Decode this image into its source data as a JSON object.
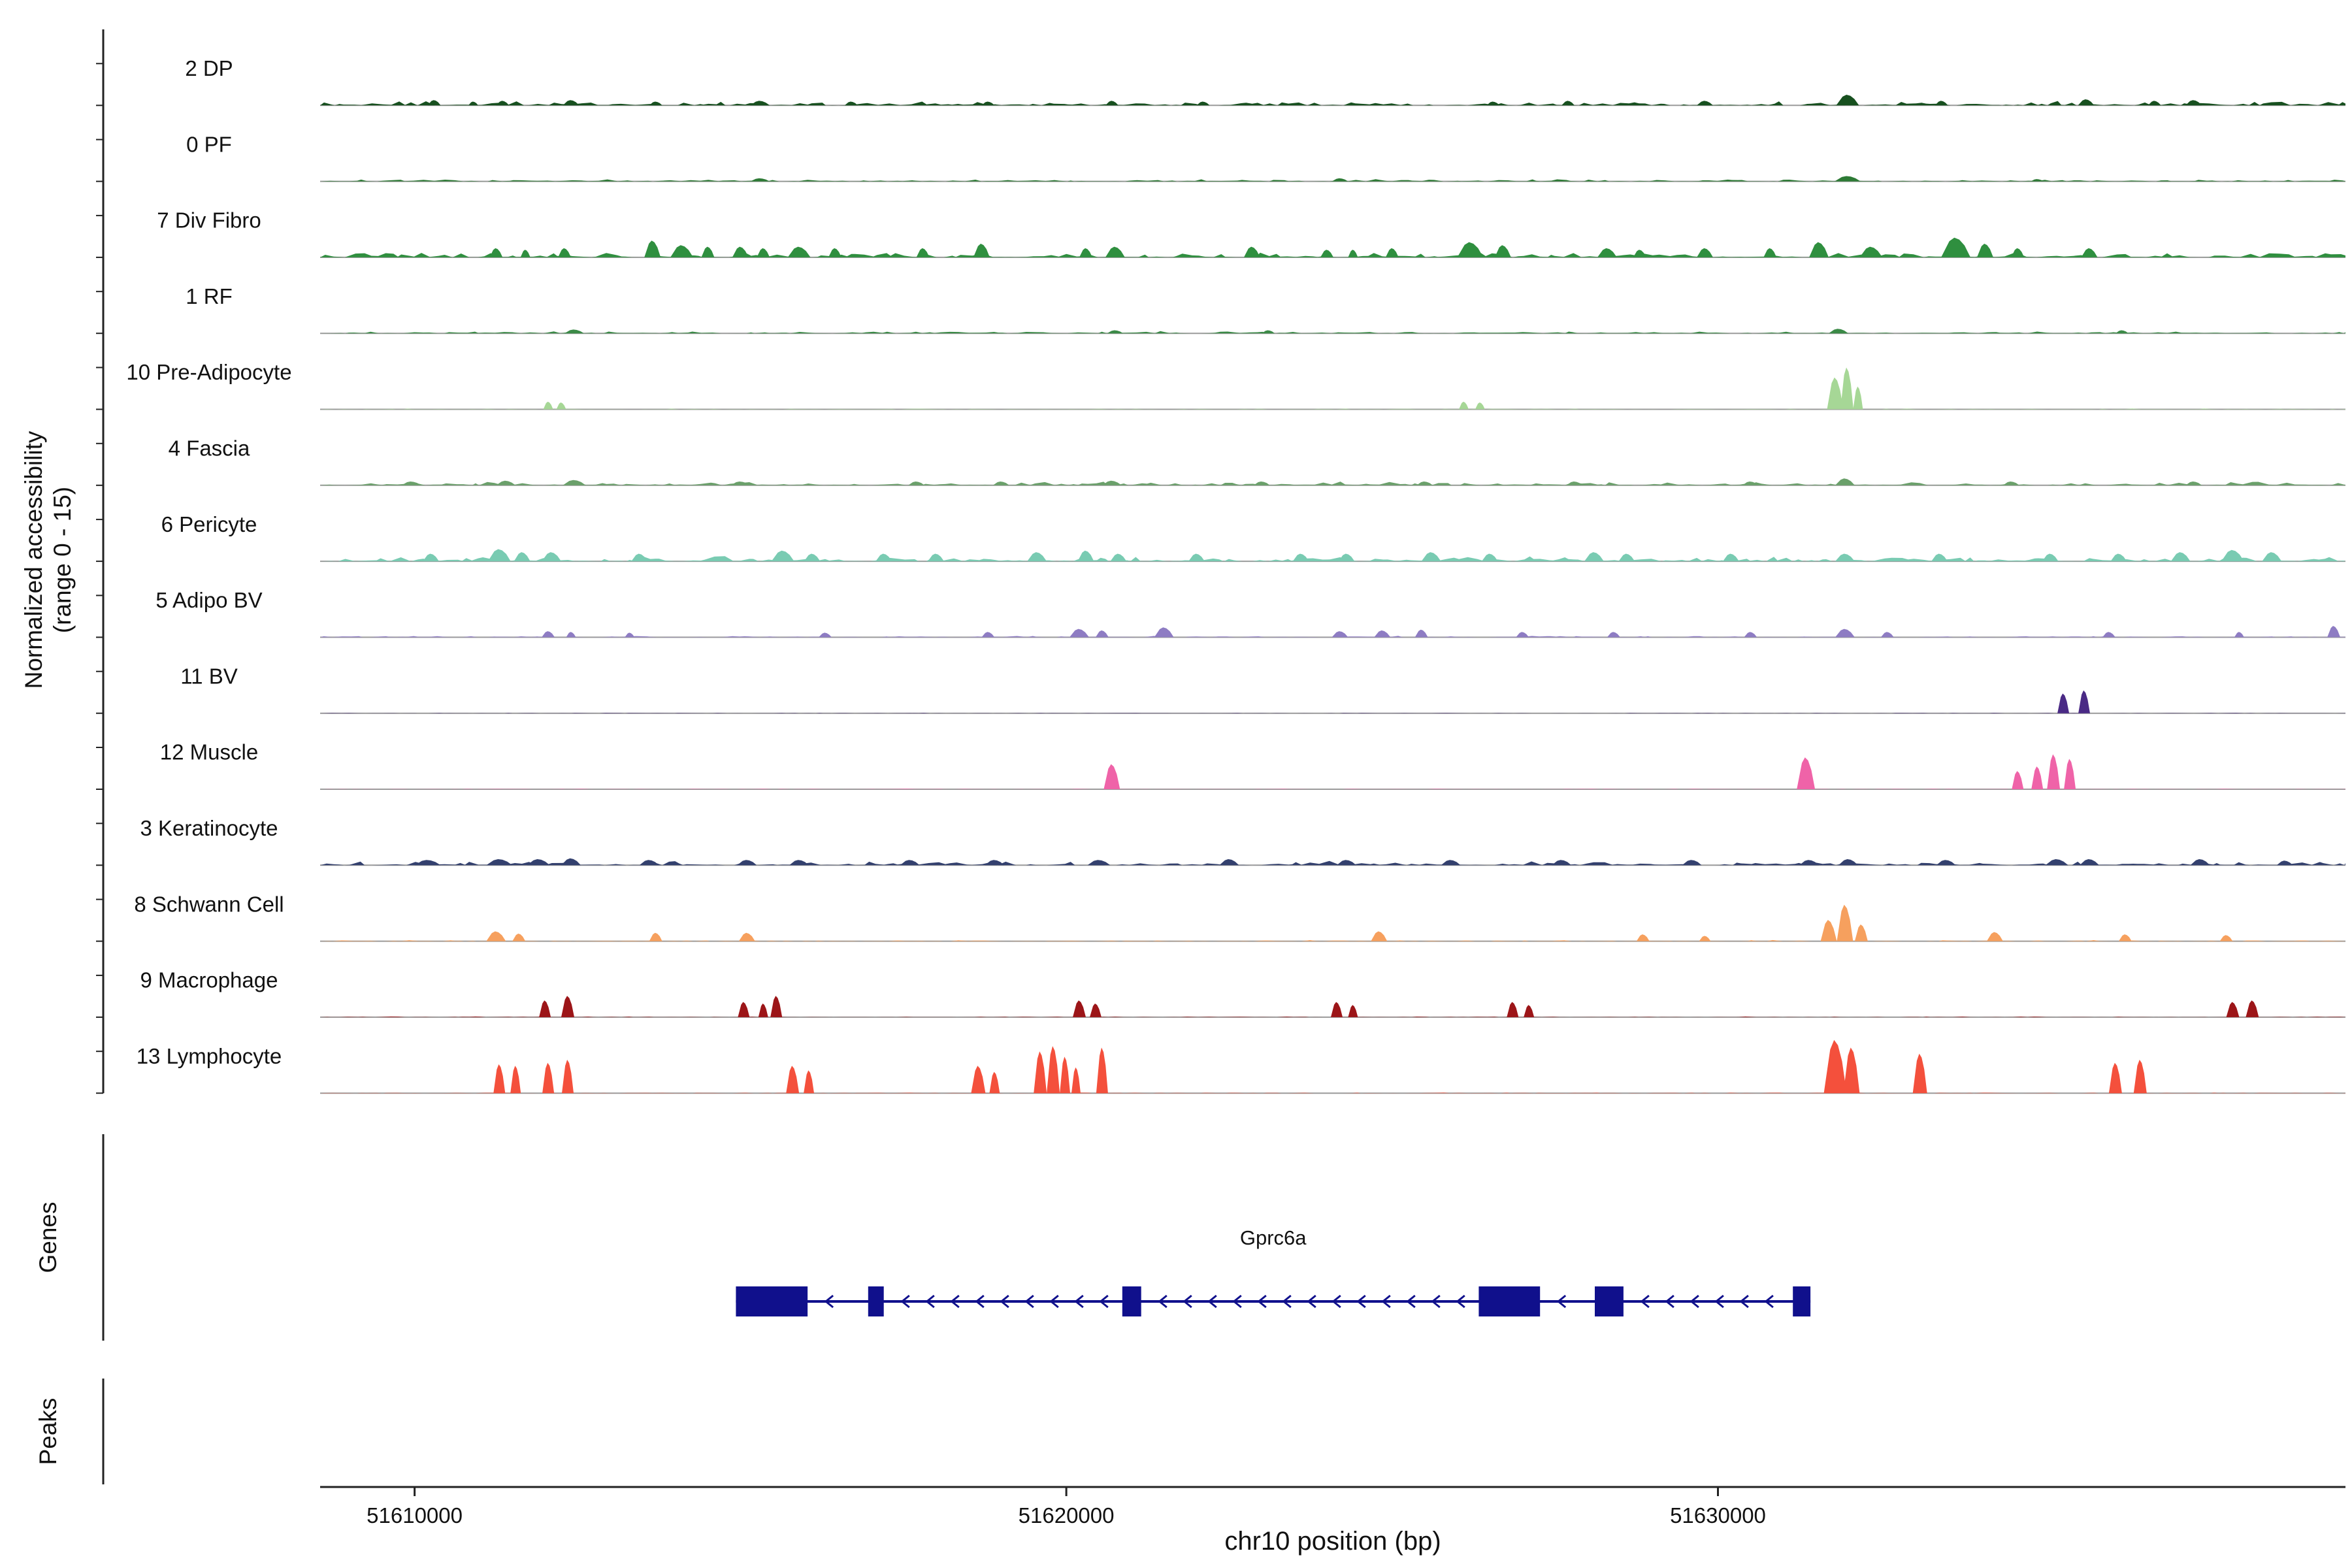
{
  "chart_data": {
    "type": "area",
    "title": "",
    "x_axis": {
      "label": "chr10 position (bp)",
      "domain": [
        51608550,
        51639630
      ],
      "ticks": [
        51610000,
        51620000,
        51630000
      ],
      "tick_labels": [
        "51610000",
        "51620000",
        "51630000"
      ]
    },
    "y_axis": {
      "label_line1": "Normalized accessibility",
      "label_line2": "(range 0 - 15)",
      "per_track_range": [
        0,
        15
      ]
    },
    "tracks": [
      {
        "label": "2 DP",
        "color": "#17501f",
        "noise": 0.06,
        "peaks": [
          [
            51610300,
            200,
            0.07
          ],
          [
            51610900,
            150,
            0.05
          ],
          [
            51611350,
            200,
            0.06
          ],
          [
            51612400,
            250,
            0.07
          ],
          [
            51613700,
            200,
            0.05
          ],
          [
            51615300,
            300,
            0.06
          ],
          [
            51616700,
            200,
            0.05
          ],
          [
            51618800,
            200,
            0.05
          ],
          [
            51620700,
            200,
            0.06
          ],
          [
            51622100,
            200,
            0.05
          ],
          [
            51626550,
            200,
            0.05
          ],
          [
            51627700,
            200,
            0.06
          ],
          [
            51629800,
            250,
            0.06
          ],
          [
            51631990,
            350,
            0.14
          ],
          [
            51633430,
            200,
            0.06
          ],
          [
            51635650,
            250,
            0.08
          ],
          [
            51636700,
            200,
            0.06
          ],
          [
            51637300,
            250,
            0.07
          ]
        ]
      },
      {
        "label": "0 PF",
        "color": "#2d7a35",
        "noise": 0.03,
        "peaks": [
          [
            51615300,
            300,
            0.04
          ],
          [
            51624200,
            250,
            0.04
          ],
          [
            51631990,
            400,
            0.07
          ],
          [
            51634900,
            200,
            0.03
          ]
        ]
      },
      {
        "label": "7 Div Fibro",
        "color": "#2f8f3f",
        "noise": 0.07,
        "peaks": [
          [
            51611250,
            200,
            0.12
          ],
          [
            51611700,
            150,
            0.1
          ],
          [
            51612300,
            200,
            0.12
          ],
          [
            51613650,
            250,
            0.22
          ],
          [
            51614100,
            350,
            0.16
          ],
          [
            51614500,
            200,
            0.14
          ],
          [
            51615000,
            250,
            0.14
          ],
          [
            51615350,
            200,
            0.12
          ],
          [
            51615900,
            350,
            0.14
          ],
          [
            51616450,
            200,
            0.12
          ],
          [
            51617800,
            200,
            0.12
          ],
          [
            51618700,
            250,
            0.18
          ],
          [
            51620300,
            200,
            0.12
          ],
          [
            51620750,
            300,
            0.14
          ],
          [
            51622850,
            250,
            0.14
          ],
          [
            51624000,
            200,
            0.1
          ],
          [
            51624400,
            150,
            0.1
          ],
          [
            51625000,
            200,
            0.12
          ],
          [
            51626200,
            400,
            0.2
          ],
          [
            51626700,
            250,
            0.16
          ],
          [
            51628300,
            300,
            0.12
          ],
          [
            51628800,
            200,
            0.1
          ],
          [
            51629800,
            250,
            0.12
          ],
          [
            51630800,
            200,
            0.12
          ],
          [
            51631550,
            300,
            0.2
          ],
          [
            51632350,
            350,
            0.14
          ],
          [
            51633650,
            450,
            0.26
          ],
          [
            51634100,
            250,
            0.18
          ],
          [
            51634600,
            200,
            0.12
          ],
          [
            51635700,
            250,
            0.12
          ]
        ]
      },
      {
        "label": "1 RF",
        "color": "#3b8a47",
        "noise": 0.03,
        "peaks": [
          [
            51612450,
            300,
            0.05
          ],
          [
            51620750,
            250,
            0.04
          ],
          [
            51623100,
            200,
            0.04
          ],
          [
            51631850,
            300,
            0.06
          ],
          [
            51636200,
            200,
            0.04
          ]
        ]
      },
      {
        "label": "10 Pre-Adipocyte",
        "color": "#a6d796",
        "noise": 0.01,
        "peaks": [
          [
            51612050,
            150,
            0.1
          ],
          [
            51612250,
            150,
            0.09
          ],
          [
            51626100,
            150,
            0.1
          ],
          [
            51626350,
            150,
            0.09
          ],
          [
            51631800,
            250,
            0.42
          ],
          [
            51631980,
            200,
            0.55
          ],
          [
            51632150,
            150,
            0.3
          ]
        ]
      },
      {
        "label": "4 Fascia",
        "color": "#6aa06a",
        "noise": 0.05,
        "peaks": [
          [
            51609950,
            300,
            0.05
          ],
          [
            51611400,
            300,
            0.06
          ],
          [
            51612450,
            350,
            0.07
          ],
          [
            51615000,
            300,
            0.05
          ],
          [
            51617700,
            250,
            0.05
          ],
          [
            51619000,
            250,
            0.05
          ],
          [
            51620700,
            300,
            0.06
          ],
          [
            51623000,
            250,
            0.05
          ],
          [
            51625500,
            250,
            0.05
          ],
          [
            51627800,
            250,
            0.05
          ],
          [
            51630500,
            250,
            0.05
          ],
          [
            51631950,
            300,
            0.09
          ],
          [
            51634500,
            250,
            0.05
          ],
          [
            51637300,
            250,
            0.05
          ]
        ]
      },
      {
        "label": "6 Pericyte",
        "color": "#79cbb2",
        "noise": 0.07,
        "peaks": [
          [
            51610250,
            250,
            0.1
          ],
          [
            51611300,
            350,
            0.16
          ],
          [
            51611650,
            250,
            0.12
          ],
          [
            51612100,
            300,
            0.12
          ],
          [
            51613450,
            250,
            0.1
          ],
          [
            51615650,
            350,
            0.14
          ],
          [
            51616100,
            250,
            0.1
          ],
          [
            51617200,
            250,
            0.1
          ],
          [
            51618000,
            250,
            0.1
          ],
          [
            51619550,
            300,
            0.12
          ],
          [
            51620300,
            250,
            0.14
          ],
          [
            51620800,
            250,
            0.1
          ],
          [
            51622000,
            250,
            0.1
          ],
          [
            51623600,
            250,
            0.1
          ],
          [
            51624300,
            250,
            0.1
          ],
          [
            51625600,
            300,
            0.12
          ],
          [
            51626500,
            250,
            0.1
          ],
          [
            51628100,
            300,
            0.12
          ],
          [
            51628600,
            250,
            0.1
          ],
          [
            51630200,
            250,
            0.1
          ],
          [
            51631950,
            300,
            0.1
          ],
          [
            51633400,
            250,
            0.1
          ],
          [
            51635100,
            250,
            0.1
          ],
          [
            51636150,
            250,
            0.1
          ],
          [
            51637100,
            300,
            0.12
          ],
          [
            51637900,
            350,
            0.15
          ],
          [
            51638500,
            300,
            0.12
          ]
        ]
      },
      {
        "label": "5 Adipo BV",
        "color": "#8e7cc3",
        "noise": 0.02,
        "peaks": [
          [
            51612050,
            200,
            0.08
          ],
          [
            51612400,
            150,
            0.07
          ],
          [
            51613300,
            150,
            0.06
          ],
          [
            51616300,
            200,
            0.06
          ],
          [
            51618800,
            200,
            0.07
          ],
          [
            51620200,
            300,
            0.11
          ],
          [
            51620550,
            200,
            0.09
          ],
          [
            51621500,
            300,
            0.13
          ],
          [
            51624200,
            250,
            0.08
          ],
          [
            51624850,
            250,
            0.09
          ],
          [
            51625450,
            200,
            0.1
          ],
          [
            51627000,
            200,
            0.07
          ],
          [
            51628400,
            200,
            0.07
          ],
          [
            51630500,
            200,
            0.07
          ],
          [
            51631950,
            300,
            0.11
          ],
          [
            51632600,
            200,
            0.07
          ],
          [
            51636000,
            200,
            0.07
          ],
          [
            51638000,
            150,
            0.07
          ],
          [
            51639450,
            200,
            0.15
          ]
        ]
      },
      {
        "label": "11 BV",
        "color": "#4a2a85",
        "noise": 0.006,
        "peaks": [
          [
            51635300,
            180,
            0.26
          ],
          [
            51635620,
            180,
            0.3
          ]
        ]
      },
      {
        "label": "12 Muscle",
        "color": "#ef63a8",
        "noise": 0.006,
        "peaks": [
          [
            51620700,
            250,
            0.33
          ],
          [
            51631350,
            280,
            0.42
          ],
          [
            51634600,
            180,
            0.24
          ],
          [
            51634900,
            180,
            0.3
          ],
          [
            51635150,
            200,
            0.46
          ],
          [
            51635400,
            180,
            0.4
          ]
        ]
      },
      {
        "label": "3 Keratinocyte",
        "color": "#33406e",
        "noise": 0.06,
        "peaks": [
          [
            51610200,
            400,
            0.07
          ],
          [
            51611300,
            400,
            0.08
          ],
          [
            51611900,
            350,
            0.08
          ],
          [
            51612400,
            300,
            0.09
          ],
          [
            51613600,
            300,
            0.07
          ],
          [
            51615100,
            300,
            0.07
          ],
          [
            51615900,
            300,
            0.07
          ],
          [
            51617600,
            300,
            0.07
          ],
          [
            51618900,
            300,
            0.07
          ],
          [
            51620500,
            350,
            0.07
          ],
          [
            51622500,
            300,
            0.08
          ],
          [
            51624300,
            300,
            0.07
          ],
          [
            51625900,
            300,
            0.07
          ],
          [
            51627600,
            300,
            0.07
          ],
          [
            51629600,
            300,
            0.07
          ],
          [
            51631400,
            300,
            0.07
          ],
          [
            51632000,
            300,
            0.08
          ],
          [
            51633500,
            300,
            0.07
          ],
          [
            51635200,
            350,
            0.08
          ],
          [
            51635700,
            300,
            0.08
          ],
          [
            51637400,
            300,
            0.08
          ],
          [
            51638700,
            250,
            0.06
          ]
        ]
      },
      {
        "label": "8 Schwann Cell",
        "color": "#f6a05e",
        "noise": 0.015,
        "peaks": [
          [
            51611250,
            300,
            0.13
          ],
          [
            51611600,
            200,
            0.1
          ],
          [
            51613700,
            200,
            0.11
          ],
          [
            51615100,
            250,
            0.11
          ],
          [
            51624800,
            250,
            0.13
          ],
          [
            51628850,
            200,
            0.09
          ],
          [
            51629800,
            180,
            0.07
          ],
          [
            51631700,
            250,
            0.28
          ],
          [
            51631950,
            250,
            0.48
          ],
          [
            51632200,
            200,
            0.22
          ],
          [
            51634250,
            250,
            0.12
          ],
          [
            51636250,
            200,
            0.09
          ],
          [
            51637800,
            200,
            0.08
          ]
        ]
      },
      {
        "label": "9 Macrophage",
        "color": "#9c1518",
        "noise": 0.01,
        "peaks": [
          [
            51612000,
            180,
            0.22
          ],
          [
            51612350,
            200,
            0.28
          ],
          [
            51615050,
            180,
            0.2
          ],
          [
            51615350,
            150,
            0.18
          ],
          [
            51615550,
            180,
            0.28
          ],
          [
            51620200,
            200,
            0.22
          ],
          [
            51620450,
            180,
            0.18
          ],
          [
            51624150,
            180,
            0.2
          ],
          [
            51624400,
            150,
            0.16
          ],
          [
            51626850,
            180,
            0.2
          ],
          [
            51627100,
            160,
            0.16
          ],
          [
            51637900,
            200,
            0.2
          ],
          [
            51638200,
            200,
            0.22
          ]
        ]
      },
      {
        "label": "13 Lymphocyte",
        "color": "#f4503c",
        "noise": 0.008,
        "peaks": [
          [
            51611300,
            180,
            0.38
          ],
          [
            51611550,
            160,
            0.36
          ],
          [
            51612050,
            180,
            0.4
          ],
          [
            51612350,
            180,
            0.44
          ],
          [
            51615800,
            200,
            0.36
          ],
          [
            51616050,
            160,
            0.3
          ],
          [
            51618650,
            220,
            0.36
          ],
          [
            51618900,
            160,
            0.28
          ],
          [
            51619600,
            200,
            0.55
          ],
          [
            51619800,
            200,
            0.62
          ],
          [
            51619980,
            160,
            0.48
          ],
          [
            51620150,
            140,
            0.34
          ],
          [
            51620550,
            180,
            0.6
          ],
          [
            51631800,
            350,
            0.7
          ],
          [
            51632050,
            250,
            0.6
          ],
          [
            51633100,
            220,
            0.52
          ],
          [
            51636100,
            200,
            0.4
          ],
          [
            51636480,
            200,
            0.44
          ]
        ]
      }
    ],
    "genes": {
      "section_label": "Genes",
      "items": [
        {
          "name": "Gprc6a",
          "strand": "-",
          "start": 51614930,
          "end": 51631420,
          "color": "#10108c",
          "exons": [
            [
              51614930,
              51616030
            ],
            [
              51616960,
              51617200
            ],
            [
              51620860,
              51621150
            ],
            [
              51626330,
              51627270
            ],
            [
              51628110,
              51628550
            ],
            [
              51631150,
              51631420
            ]
          ]
        }
      ]
    },
    "peaks_section": {
      "section_label": "Peaks",
      "items": []
    }
  }
}
